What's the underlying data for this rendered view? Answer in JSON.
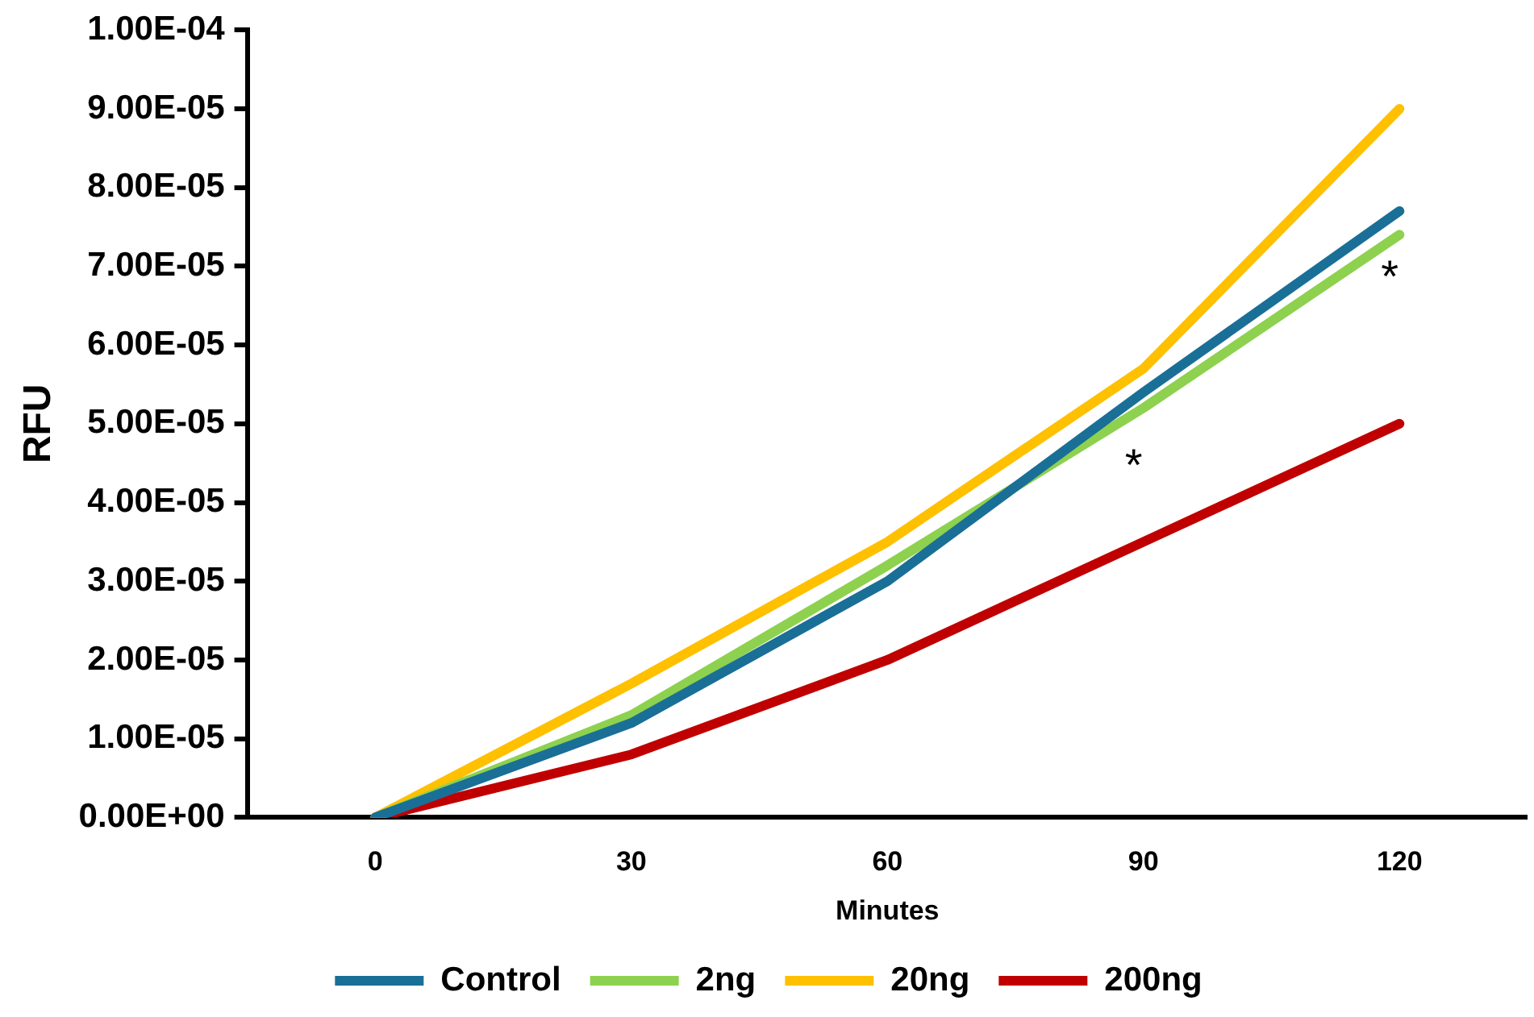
{
  "chart_data": {
    "type": "line",
    "xlabel": "Minutes",
    "ylabel": "RFU",
    "categories": [
      "0",
      "30",
      "60",
      "90",
      "120"
    ],
    "series": [
      {
        "name": "Control",
        "color": "#1a6f97",
        "values": [
          0,
          1.2e-05,
          3e-05,
          5.4e-05,
          7.7e-05
        ]
      },
      {
        "name": "2ng",
        "color": "#8dd14f",
        "values": [
          0,
          1.3e-05,
          3.2e-05,
          5.2e-05,
          7.4e-05
        ]
      },
      {
        "name": "20ng",
        "color": "#ffc000",
        "values": [
          0,
          1.7e-05,
          3.5e-05,
          5.7e-05,
          9e-05
        ]
      },
      {
        "name": "200ng",
        "color": "#c00000",
        "values": [
          0,
          8e-06,
          2e-05,
          3.5e-05,
          5e-05
        ]
      }
    ],
    "ylim": [
      0,
      0.0001
    ],
    "yticks": [
      {
        "value": 0,
        "label": "0.00E+00"
      },
      {
        "value": 1e-05,
        "label": "1.00E-05"
      },
      {
        "value": 2e-05,
        "label": "2.00E-05"
      },
      {
        "value": 3e-05,
        "label": "3.00E-05"
      },
      {
        "value": 4e-05,
        "label": "4.00E-05"
      },
      {
        "value": 5e-05,
        "label": "5.00E-05"
      },
      {
        "value": 6e-05,
        "label": "6.00E-05"
      },
      {
        "value": 7e-05,
        "label": "7.00E-05"
      },
      {
        "value": 8e-05,
        "label": "8.00E-05"
      },
      {
        "value": 9e-05,
        "label": "9.00E-05"
      },
      {
        "value": 0.0001,
        "label": "1.00E-04"
      }
    ],
    "annotations": [
      "*",
      "*"
    ],
    "legend": "bottom",
    "grid": false,
    "marker": "none",
    "line_style": "solid"
  }
}
